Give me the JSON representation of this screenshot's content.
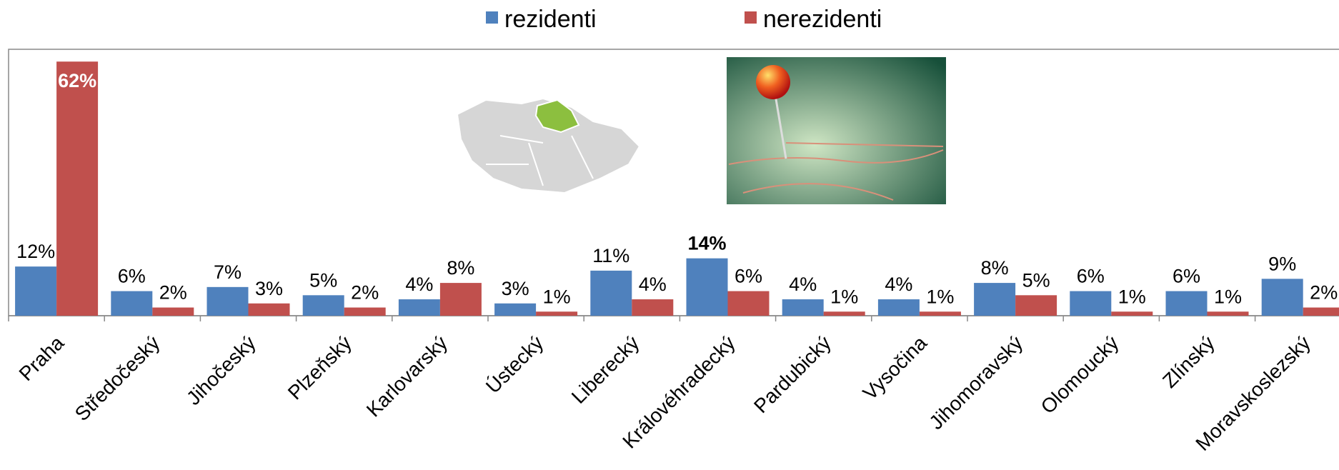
{
  "chart_data": {
    "type": "bar",
    "categories": [
      "Praha",
      "Středočeský",
      "Jihočeský",
      "Plzeňský",
      "Karlovarský",
      "Ústecký",
      "Liberecký",
      "Královéhradecký",
      "Pardubický",
      "Vysočina",
      "Jihomoravský",
      "Olomoucký",
      "Zlínský",
      "Moravskoslezský"
    ],
    "series": [
      {
        "name": "rezidenti",
        "color": "#4f81bd",
        "values": [
          12,
          6,
          7,
          5,
          4,
          3,
          11,
          14,
          4,
          4,
          8,
          6,
          6,
          9
        ],
        "value_labels": [
          "12%",
          "6%",
          "7%",
          "5%",
          "4%",
          "3%",
          "11%",
          "14%",
          "4%",
          "4%",
          "8%",
          "6%",
          "6%",
          "9%"
        ]
      },
      {
        "name": "nerezidenti",
        "color": "#c0504d",
        "values": [
          62,
          2,
          3,
          2,
          8,
          1,
          4,
          6,
          1,
          1,
          5,
          1,
          1,
          2
        ],
        "value_labels": [
          "62%",
          "2%",
          "3%",
          "2%",
          "8%",
          "1%",
          "4%",
          "6%",
          "1%",
          "1%",
          "5%",
          "1%",
          "1%",
          "2%"
        ]
      }
    ],
    "ylim": [
      0,
      65
    ],
    "legend": "top"
  }
}
